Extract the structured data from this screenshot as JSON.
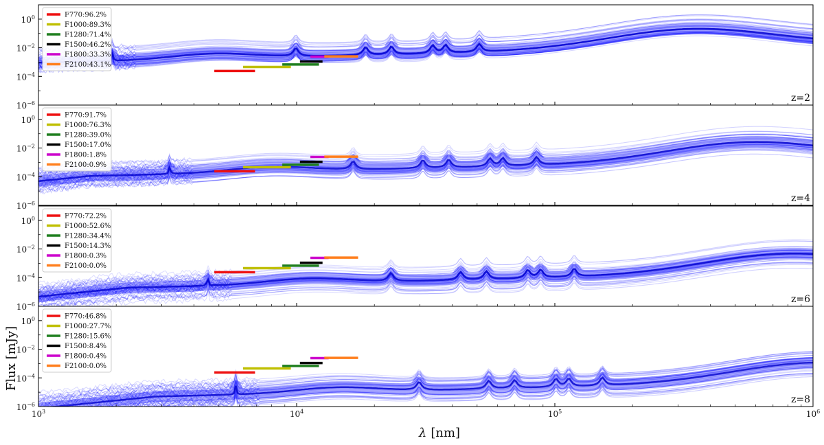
{
  "figure": {
    "ylabel": "Flux [mJy]",
    "xlabel_symbol": "λ",
    "xlabel_unit": "[nm]"
  },
  "chart_data": [
    {
      "type": "line",
      "scale": "log-log",
      "redshift_label": "z=2",
      "z": 2,
      "xlim": [
        1000,
        1000000
      ],
      "ylim": [
        1e-06,
        10
      ],
      "x_ticks": [
        {
          "value": 1000,
          "base": "10",
          "exp": "3"
        },
        {
          "value": 10000,
          "base": "10",
          "exp": "4"
        },
        {
          "value": 100000,
          "base": "10",
          "exp": "5"
        },
        {
          "value": 1000000,
          "base": "10",
          "exp": "6"
        }
      ],
      "y_ticks": [
        {
          "value": 1e-06,
          "base": "10",
          "exp": "−6"
        },
        {
          "value": 0.0001,
          "base": "10",
          "exp": "−4"
        },
        {
          "value": 0.01,
          "base": "10",
          "exp": "−2"
        },
        {
          "value": 1,
          "base": "10",
          "exp": "0"
        }
      ],
      "series_color": "#0000ff",
      "filters": [
        {
          "name": "F770",
          "percent": "96.2%",
          "label": "F770:96.2%",
          "color": "#ee1111",
          "x_range": [
            4800,
            6900
          ],
          "flux": 0.00024
        },
        {
          "name": "F1000",
          "percent": "89.3%",
          "label": "F1000:89.3%",
          "color": "#bfbf00",
          "x_range": [
            6200,
            9500
          ],
          "flux": 0.00046
        },
        {
          "name": "F1280",
          "percent": "71.4%",
          "label": "F1280:71.4%",
          "color": "#1f7f1f",
          "x_range": [
            8800,
            12200
          ],
          "flux": 0.00068
        },
        {
          "name": "F1500",
          "percent": "46.2%",
          "label": "F1500:46.2%",
          "color": "#000000",
          "x_range": [
            10300,
            12600
          ],
          "flux": 0.0011
        },
        {
          "name": "F1800",
          "percent": "33.3%",
          "label": "F1800:33.3%",
          "color": "#cc00cc",
          "x_range": [
            11300,
            13300
          ],
          "flux": 0.0024
        },
        {
          "name": "F2100",
          "percent": "43.1%",
          "label": "F2100:43.1%",
          "color": "#ff7f1e",
          "x_range": [
            12800,
            17300
          ],
          "flux": 0.0025
        }
      ]
    },
    {
      "type": "line",
      "scale": "log-log",
      "redshift_label": "z=4",
      "z": 4,
      "xlim": [
        1000,
        1000000
      ],
      "ylim": [
        1e-06,
        10
      ],
      "x_ticks": [
        {
          "value": 1000,
          "base": "10",
          "exp": "3"
        },
        {
          "value": 10000,
          "base": "10",
          "exp": "4"
        },
        {
          "value": 100000,
          "base": "10",
          "exp": "5"
        },
        {
          "value": 1000000,
          "base": "10",
          "exp": "6"
        }
      ],
      "y_ticks": [
        {
          "value": 1e-06,
          "base": "10",
          "exp": "−6"
        },
        {
          "value": 0.0001,
          "base": "10",
          "exp": "−4"
        },
        {
          "value": 0.01,
          "base": "10",
          "exp": "−2"
        },
        {
          "value": 1,
          "base": "10",
          "exp": "0"
        }
      ],
      "series_color": "#0000ff",
      "filters": [
        {
          "name": "F770",
          "percent": "91.7%",
          "label": "F770:91.7%",
          "color": "#ee1111",
          "x_range": [
            4800,
            6900
          ],
          "flux": 0.00024
        },
        {
          "name": "F1000",
          "percent": "76.3%",
          "label": "F1000:76.3%",
          "color": "#bfbf00",
          "x_range": [
            6200,
            9500
          ],
          "flux": 0.00046
        },
        {
          "name": "F1280",
          "percent": "39.0%",
          "label": "F1280:39.0%",
          "color": "#1f7f1f",
          "x_range": [
            8800,
            12200
          ],
          "flux": 0.00068
        },
        {
          "name": "F1500",
          "percent": "17.0%",
          "label": "F1500:17.0%",
          "color": "#000000",
          "x_range": [
            10300,
            12600
          ],
          "flux": 0.0011
        },
        {
          "name": "F1800",
          "percent": "1.8%",
          "label": "F1800:1.8%",
          "color": "#cc00cc",
          "x_range": [
            11300,
            13300
          ],
          "flux": 0.0024
        },
        {
          "name": "F2100",
          "percent": "0.9%",
          "label": "F2100:0.9%",
          "color": "#ff7f1e",
          "x_range": [
            12800,
            17300
          ],
          "flux": 0.0025
        }
      ]
    },
    {
      "type": "line",
      "scale": "log-log",
      "redshift_label": "z=6",
      "z": 6,
      "xlim": [
        1000,
        1000000
      ],
      "ylim": [
        1e-06,
        10
      ],
      "x_ticks": [
        {
          "value": 1000,
          "base": "10",
          "exp": "3"
        },
        {
          "value": 10000,
          "base": "10",
          "exp": "4"
        },
        {
          "value": 100000,
          "base": "10",
          "exp": "5"
        },
        {
          "value": 1000000,
          "base": "10",
          "exp": "6"
        }
      ],
      "y_ticks": [
        {
          "value": 1e-06,
          "base": "10",
          "exp": "−6"
        },
        {
          "value": 0.0001,
          "base": "10",
          "exp": "−4"
        },
        {
          "value": 0.01,
          "base": "10",
          "exp": "−2"
        },
        {
          "value": 1,
          "base": "10",
          "exp": "0"
        }
      ],
      "series_color": "#0000ff",
      "filters": [
        {
          "name": "F770",
          "percent": "72.2%",
          "label": "F770:72.2%",
          "color": "#ee1111",
          "x_range": [
            4800,
            6900
          ],
          "flux": 0.00024
        },
        {
          "name": "F1000",
          "percent": "52.6%",
          "label": "F1000:52.6%",
          "color": "#bfbf00",
          "x_range": [
            6200,
            9500
          ],
          "flux": 0.00046
        },
        {
          "name": "F1280",
          "percent": "34.4%",
          "label": "F1280:34.4%",
          "color": "#1f7f1f",
          "x_range": [
            8800,
            12200
          ],
          "flux": 0.00068
        },
        {
          "name": "F1500",
          "percent": "14.3%",
          "label": "F1500:14.3%",
          "color": "#000000",
          "x_range": [
            10300,
            12600
          ],
          "flux": 0.0011
        },
        {
          "name": "F1800",
          "percent": "0.3%",
          "label": "F1800:0.3%",
          "color": "#cc00cc",
          "x_range": [
            11300,
            13300
          ],
          "flux": 0.0024
        },
        {
          "name": "F2100",
          "percent": "0.0%",
          "label": "F2100:0.0%",
          "color": "#ff7f1e",
          "x_range": [
            12800,
            17300
          ],
          "flux": 0.0025
        }
      ]
    },
    {
      "type": "line",
      "scale": "log-log",
      "redshift_label": "z=8",
      "z": 8,
      "xlim": [
        1000,
        1000000
      ],
      "ylim": [
        1e-06,
        10
      ],
      "x_ticks": [
        {
          "value": 1000,
          "base": "10",
          "exp": "3"
        },
        {
          "value": 10000,
          "base": "10",
          "exp": "4"
        },
        {
          "value": 100000,
          "base": "10",
          "exp": "5"
        },
        {
          "value": 1000000,
          "base": "10",
          "exp": "6"
        }
      ],
      "y_ticks": [
        {
          "value": 1e-06,
          "base": "10",
          "exp": "−6"
        },
        {
          "value": 0.0001,
          "base": "10",
          "exp": "−4"
        },
        {
          "value": 0.01,
          "base": "10",
          "exp": "−2"
        },
        {
          "value": 1,
          "base": "10",
          "exp": "0"
        }
      ],
      "series_color": "#0000ff",
      "filters": [
        {
          "name": "F770",
          "percent": "46.8%",
          "label": "F770:46.8%",
          "color": "#ee1111",
          "x_range": [
            4800,
            6900
          ],
          "flux": 0.00024
        },
        {
          "name": "F1000",
          "percent": "27.7%",
          "label": "F1000:27.7%",
          "color": "#bfbf00",
          "x_range": [
            6200,
            9500
          ],
          "flux": 0.00046
        },
        {
          "name": "F1280",
          "percent": "15.6%",
          "label": "F1280:15.6%",
          "color": "#1f7f1f",
          "x_range": [
            8800,
            12200
          ],
          "flux": 0.00068
        },
        {
          "name": "F1500",
          "percent": "8.4%",
          "label": "F1500:8.4%",
          "color": "#000000",
          "x_range": [
            10300,
            12600
          ],
          "flux": 0.0011
        },
        {
          "name": "F1800",
          "percent": "0.4%",
          "label": "F1800:0.4%",
          "color": "#cc00cc",
          "x_range": [
            11300,
            13300
          ],
          "flux": 0.0024
        },
        {
          "name": "F2100",
          "percent": "0.0%",
          "label": "F2100:0.0%",
          "color": "#ff7f1e",
          "x_range": [
            12800,
            17300
          ],
          "flux": 0.0025
        }
      ]
    }
  ]
}
